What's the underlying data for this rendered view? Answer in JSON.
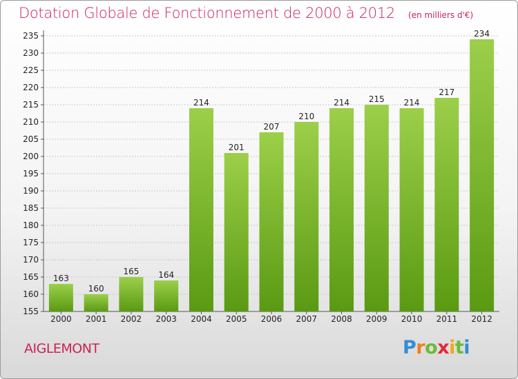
{
  "title": "Dotation Globale de Fonctionnement de 2000 à 2012",
  "unit": "(en milliers d'€)",
  "city": "AIGLEMONT",
  "logo": {
    "p": "P",
    "r": "r",
    "o": "o",
    "x": "x",
    "i1": "i",
    "t": "t",
    "i2": "i"
  },
  "colors": {
    "bar_light": "#9ccf4a",
    "bar_dark": "#5a9a12",
    "title": "#cc2255",
    "grid": "#c8c8c8"
  },
  "chart_data": {
    "type": "bar",
    "categories": [
      "2000",
      "2001",
      "2002",
      "2003",
      "2004",
      "2005",
      "2006",
      "2007",
      "2008",
      "2009",
      "2010",
      "2011",
      "2012"
    ],
    "values": [
      163,
      160,
      165,
      164,
      214,
      201,
      207,
      210,
      214,
      215,
      214,
      217,
      234
    ],
    "ylim": [
      155,
      235
    ],
    "yticks": [
      155,
      160,
      165,
      170,
      175,
      180,
      185,
      190,
      195,
      200,
      205,
      210,
      215,
      220,
      225,
      230,
      235
    ],
    "grid": true,
    "xlabel": "",
    "ylabel": ""
  }
}
